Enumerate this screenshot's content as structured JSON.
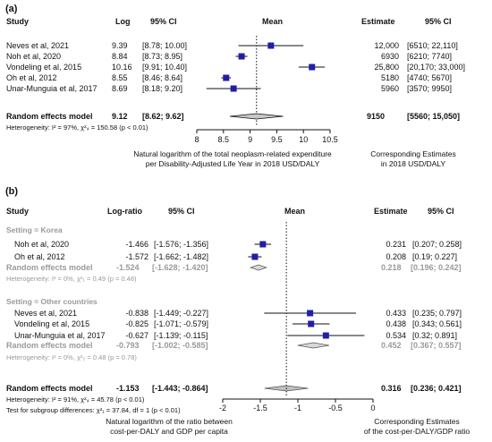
{
  "panel_a": {
    "label": "(a)",
    "headers": {
      "study": "Study",
      "log": "Log",
      "ci": "95% CI",
      "mean": "Mean",
      "estimate": "Estimate",
      "est_ci": "95% CI"
    },
    "summary": {
      "label": "Random effects model",
      "log": "9.12",
      "ci": "[8.62; 9.62]",
      "estimate": "9150",
      "est_ci": "[5560; 15,050]"
    },
    "heterogeneity": "Heterogeneity: I² = 97%, χ²₄ = 150.58 (p < 0.01)",
    "xlabel_line1": "Natural logarithm of the total neoplasm-related expenditure",
    "xlabel_line2": "per Disability-Adjusted Life Year in 2018 USD/DALY",
    "right_label_line1": "Corresponding Estimates",
    "right_label_line2": "in 2018 USD/DALY"
  },
  "panel_b": {
    "label": "(b)",
    "headers": {
      "study": "Study",
      "log": "Log-ratio",
      "ci": "95% CI",
      "mean": "Mean",
      "estimate": "Estimate",
      "est_ci": "95% CI"
    },
    "subgroup_korea": "Setting = Korea",
    "subgroup_other": "Setting = Other countries",
    "korea_summary": {
      "label": "Random effects model",
      "log": "-1.524",
      "ci": "[-1.628; -1.420]",
      "estimate": "0.218",
      "est_ci": "[0.196; 0.242]"
    },
    "korea_het": "Heterogeneity: I² = 0%, χ²₁ = 0.49 (p = 0.48)",
    "other_summary": {
      "label": "Random effects model",
      "log": "-0.793",
      "ci": "[-1.002; -0.585]",
      "estimate": "0.452",
      "est_ci": "[0.367; 0.557]"
    },
    "other_het": "Heterogeneity: I² = 0%, χ²₂ = 0.48 (p = 0.78)",
    "overall": {
      "label": "Random effects model",
      "log": "-1.153",
      "ci": "[-1.443; -0.864]",
      "estimate": "0.316",
      "est_ci": "[0.236; 0.421]"
    },
    "overall_het": "Heterogeneity: I² = 91%, χ²₄ = 45.78 (p < 0.01)",
    "subgroup_test": "Test for subgroup differences: χ²₁ = 37.84, df = 1 (p < 0.01)",
    "xlabel_line1": "Natural logarithm of the ratio between",
    "xlabel_line2": "cost-per-DALY and GDP per capita",
    "right_label_line1": "Corresponding Estimates",
    "right_label_line2": "of the cost-per-DALY/GDP ratio"
  },
  "chart_data": [
    {
      "type": "forest",
      "panel": "(a)",
      "studies": [
        {
          "name": "Neves et al, 2021",
          "log": 9.39,
          "ci_text": "[8.78; 10.00]",
          "lo": 8.78,
          "hi": 10.0,
          "estimate": "12,000",
          "est_ci": "[6510; 22,110]"
        },
        {
          "name": "Noh et al, 2020",
          "log": 8.84,
          "ci_text": "[8.73; 8.95]",
          "lo": 8.73,
          "hi": 8.95,
          "estimate": "6930",
          "est_ci": "[6210; 7740]"
        },
        {
          "name": "Vondeling et al, 2015",
          "log": 10.16,
          "ci_text": "[9.91; 10.40]",
          "lo": 9.91,
          "hi": 10.4,
          "estimate": "25,800",
          "est_ci": "[20,170; 33,000]"
        },
        {
          "name": "Oh et al, 2012",
          "log": 8.55,
          "ci_text": "[8.46; 8.64]",
          "lo": 8.46,
          "hi": 8.64,
          "estimate": "5180",
          "est_ci": "[4740; 5670]"
        },
        {
          "name": "Unar-Munguia et al, 2017",
          "log": 8.69,
          "ci_text": "[8.18; 9.20]",
          "lo": 8.18,
          "hi": 9.2,
          "estimate": "5960",
          "est_ci": "[3570; 9950]"
        }
      ],
      "pooled": {
        "log": 9.12,
        "lo": 8.62,
        "hi": 9.62
      },
      "xticks": [
        "8",
        "8.5",
        "9",
        "9.5",
        "10",
        "10.5"
      ],
      "xlim": [
        8,
        10.5
      ]
    },
    {
      "type": "forest",
      "panel": "(b)",
      "korea": [
        {
          "name": "Noh et al, 2020",
          "log": -1.466,
          "ci_text": "[-1.576; -1.356]",
          "lo": -1.576,
          "hi": -1.356,
          "estimate": "0.231",
          "est_ci": "[0.207; 0.258]"
        },
        {
          "name": "Oh et al, 2012",
          "log": -1.572,
          "ci_text": "[-1.662; -1.482]",
          "lo": -1.662,
          "hi": -1.482,
          "estimate": "0.208",
          "est_ci": "[0.19; 0.227]"
        }
      ],
      "korea_pooled": {
        "log": -1.524,
        "lo": -1.628,
        "hi": -1.42
      },
      "other": [
        {
          "name": "Neves et al, 2021",
          "log": -0.838,
          "ci_text": "[-1.449; -0.227]",
          "lo": -1.449,
          "hi": -0.227,
          "estimate": "0.433",
          "est_ci": "[0.235; 0.797]"
        },
        {
          "name": "Vondeling et al, 2015",
          "log": -0.825,
          "ci_text": "[-1.071; -0.579]",
          "lo": -1.071,
          "hi": -0.579,
          "estimate": "0.438",
          "est_ci": "[0.343; 0.561]"
        },
        {
          "name": "Unar-Munguia et al, 2017",
          "log": -0.627,
          "ci_text": "[-1.139; -0.115]",
          "lo": -1.139,
          "hi": -0.115,
          "estimate": "0.534",
          "est_ci": "[0.32; 0.891]"
        }
      ],
      "other_pooled": {
        "log": -0.793,
        "lo": -1.002,
        "hi": -0.585
      },
      "overall_pooled": {
        "log": -1.153,
        "lo": -1.443,
        "hi": -0.864
      },
      "xticks": [
        "-2",
        "-1.5",
        "-1",
        "-0.5",
        "0"
      ],
      "xlim": [
        -2,
        0
      ]
    }
  ]
}
